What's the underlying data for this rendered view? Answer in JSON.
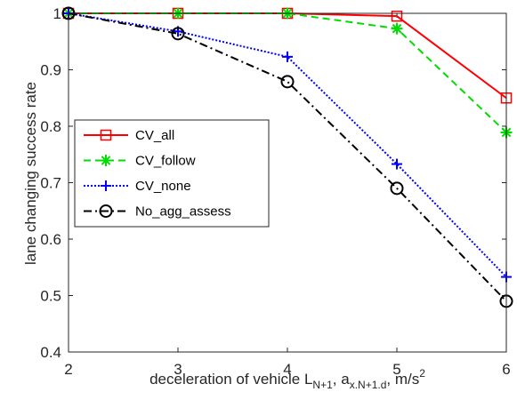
{
  "chart_data": {
    "type": "line",
    "x": [
      2,
      3,
      4,
      5,
      6
    ],
    "series": [
      {
        "name": "CV_all",
        "values": [
          1.0,
          1.0,
          1.0,
          0.995,
          0.85
        ],
        "color": "#ff0000",
        "dash": "solid",
        "marker": "square"
      },
      {
        "name": "CV_follow",
        "values": [
          1.0,
          1.0,
          1.0,
          0.973,
          0.789
        ],
        "color": "#00dd00",
        "dash": "dashed",
        "marker": "asterisk"
      },
      {
        "name": "CV_none",
        "values": [
          1.0,
          0.968,
          0.923,
          0.733,
          0.533
        ],
        "color": "#0000ff",
        "dash": "dotted",
        "marker": "plus"
      },
      {
        "name": "No_agg_assess",
        "values": [
          1.0,
          0.964,
          0.879,
          0.69,
          0.49
        ],
        "color": "#000000",
        "dash": "dashdot",
        "marker": "circle"
      }
    ],
    "xlim": [
      2,
      6
    ],
    "ylim": [
      0.4,
      1.0
    ],
    "xticks": [
      "2",
      "3",
      "4",
      "5",
      "6"
    ],
    "yticks": [
      "0.4",
      "0.5",
      "0.6",
      "0.7",
      "0.8",
      "0.9",
      "1"
    ],
    "ylabel": "lane changing success rate",
    "xlabel": {
      "prefix": "deceleration of vehicle L",
      "sub1": "N+1",
      "mid": ", a",
      "sub2": "x.N+1.d",
      "suffix": ", m/s",
      "sup": "2"
    },
    "grid": false,
    "legend_position": "center-left"
  }
}
